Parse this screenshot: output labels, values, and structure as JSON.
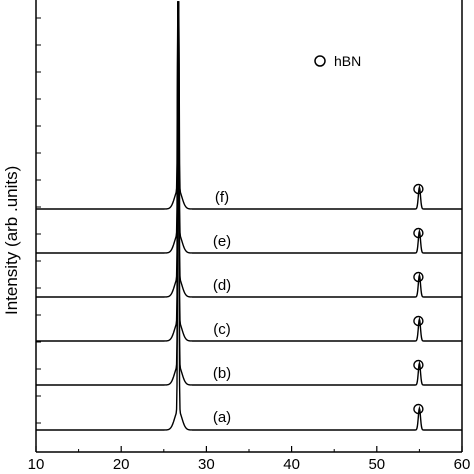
{
  "chart_data": {
    "type": "line",
    "title": "",
    "xlabel": "",
    "ylabel": "Intensity (arb .units)",
    "xlim": [
      10,
      60
    ],
    "x_ticks": [
      "10",
      "20",
      "30",
      "40",
      "50",
      "60"
    ],
    "grid": false,
    "legend": {
      "marker": "open-circle",
      "label": "hBN",
      "placement": "top-right"
    },
    "peaks": [
      {
        "x": 26.7,
        "height": 1.0,
        "marker": "none",
        "note": "dominant peak, off-scale for upper traces"
      },
      {
        "x": 55.0,
        "height": 0.05,
        "marker": "open-circle"
      }
    ],
    "series": [
      {
        "name": "(a)",
        "labels": [
          "(a)"
        ],
        "main_peak_height": 1.0,
        "minor_peak_height": 0.05
      },
      {
        "name": "(b)",
        "labels": [
          "(b)"
        ],
        "main_peak_height": 1.0,
        "minor_peak_height": 0.05
      },
      {
        "name": "(c)",
        "labels": [
          "(c)"
        ],
        "main_peak_height": 1.0,
        "minor_peak_height": 0.05
      },
      {
        "name": "(d)",
        "labels": [
          "(d)"
        ],
        "main_peak_height": 1.0,
        "minor_peak_height": 0.05
      },
      {
        "name": "(e)",
        "labels": [
          "(e)"
        ],
        "main_peak_height": 1.0,
        "minor_peak_height": 0.05
      },
      {
        "name": "(f)",
        "labels": [
          "(f)"
        ],
        "main_peak_height": 1.0,
        "minor_peak_height": 0.05
      }
    ],
    "colors": {
      "line": "#000000",
      "background": "#ffffff"
    }
  }
}
